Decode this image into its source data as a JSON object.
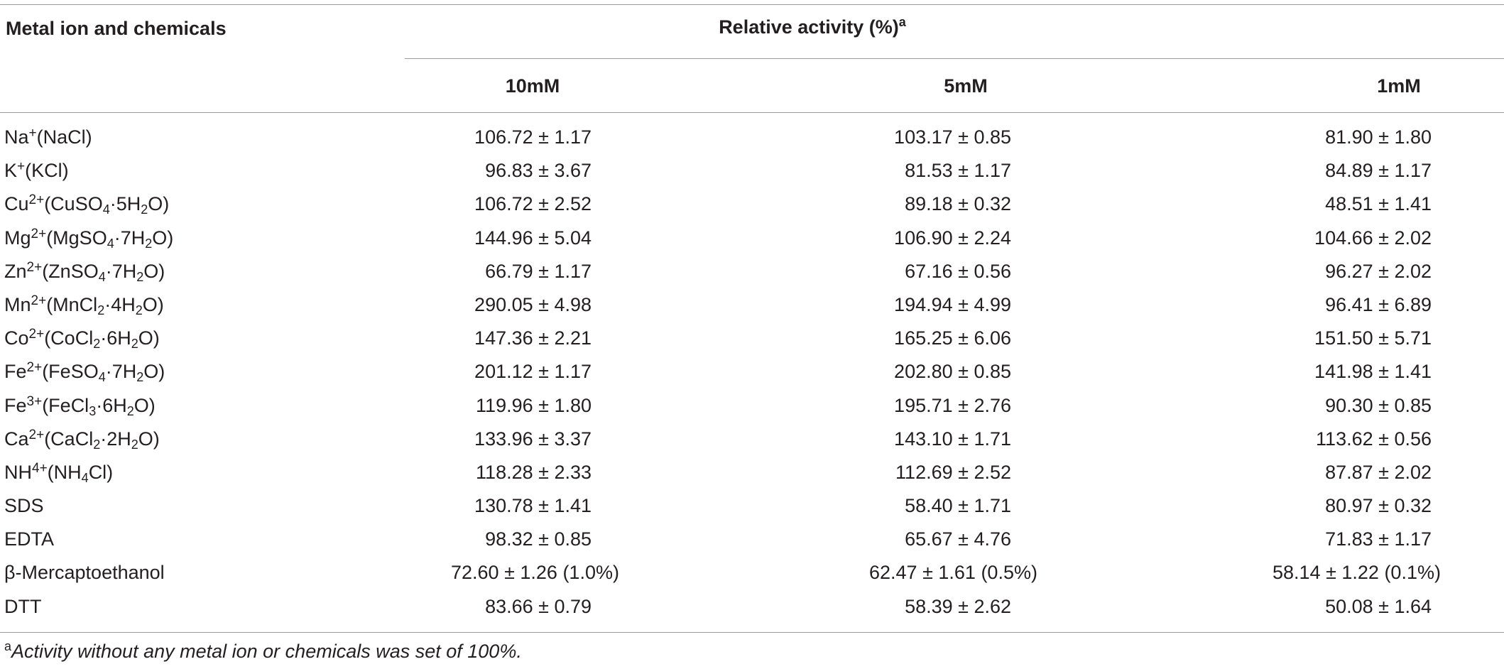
{
  "header": {
    "col_name": "Metal ion and chemicals",
    "col_group": "Relative activity (%)",
    "col_group_sup": "a",
    "col_10": "10mM",
    "col_5": "5mM",
    "col_1": "1mM"
  },
  "rows": [
    {
      "ion": "Na",
      "charge": "+",
      "pre": "(NaCl)",
      "subparts": [],
      "v10": "106.72 ± 1.17",
      "v5": "103.17 ± 0.85",
      "v1": "81.90 ± 1.80"
    },
    {
      "ion": "K",
      "charge": "+",
      "pre": "(KCl)",
      "subparts": [],
      "v10": "96.83 ± 3.67",
      "v5": "81.53 ± 1.17",
      "v1": "84.89 ± 1.17"
    },
    {
      "ion": "Cu",
      "charge": "2+",
      "formula": [
        "(CuSO",
        "4",
        "·5H",
        "2",
        "O)"
      ],
      "v10": "106.72 ± 2.52",
      "v5": "89.18 ± 0.32",
      "v1": "48.51 ± 1.41"
    },
    {
      "ion": "Mg",
      "charge": "2+",
      "formula": [
        "(MgSO",
        "4",
        "·7H",
        "2",
        "O)"
      ],
      "v10": "144.96 ± 5.04",
      "v5": "106.90 ± 2.24",
      "v1": "104.66 ± 2.02"
    },
    {
      "ion": "Zn",
      "charge": "2+",
      "formula": [
        "(ZnSO",
        "4",
        "·7H",
        "2",
        "O)"
      ],
      "v10": "66.79 ± 1.17",
      "v5": "67.16 ± 0.56",
      "v1": "96.27 ± 2.02"
    },
    {
      "ion": "Mn",
      "charge": "2+",
      "formula": [
        "(MnCl",
        "2",
        "·4H",
        "2",
        "O)"
      ],
      "v10": "290.05 ± 4.98",
      "v5": "194.94 ± 4.99",
      "v1": "96.41 ± 6.89"
    },
    {
      "ion": "Co",
      "charge": "2+",
      "formula": [
        "(CoCl",
        "2",
        "·6H",
        "2",
        "O)"
      ],
      "v10": "147.36 ± 2.21",
      "v5": "165.25 ± 6.06",
      "v1": "151.50 ± 5.71"
    },
    {
      "ion": "Fe",
      "charge": "2+",
      "formula": [
        "(FeSO",
        "4",
        "·7H",
        "2",
        "O)"
      ],
      "v10": "201.12 ± 1.17",
      "v5": "202.80 ± 0.85",
      "v1": "141.98 ± 1.41"
    },
    {
      "ion": "Fe",
      "charge": "3+",
      "formula": [
        "(FeCl",
        "3",
        "·6H",
        "2",
        "O)"
      ],
      "v10": "119.96 ± 1.80",
      "v5": "195.71 ± 2.76",
      "v1": "90.30 ± 0.85"
    },
    {
      "ion": "Ca",
      "charge": "2+",
      "formula": [
        "(CaCl",
        "2",
        "·2H",
        "2",
        "O)"
      ],
      "v10": "133.96 ± 3.37",
      "v5": "143.10 ± 1.71",
      "v1": "113.62 ± 0.56"
    },
    {
      "ion": "NH",
      "charge": "4+",
      "formula": [
        "(NH",
        "4",
        "Cl)"
      ],
      "v10": "118.28 ± 2.33",
      "v5": "112.69 ± 2.52",
      "v1": "87.87 ± 2.02"
    },
    {
      "ion": "SDS",
      "v10": "130.78 ± 1.41",
      "v5": "58.40 ± 1.71",
      "v1": "80.97 ± 0.32"
    },
    {
      "ion": "EDTA",
      "v10": "98.32 ± 0.85",
      "v5": "65.67 ± 4.76",
      "v1": "71.83 ± 1.17"
    },
    {
      "ion": "β-Mercaptoethanol",
      "v10": "72.60 ± 1.26 (1.0%)",
      "v5": "62.47 ± 1.61 (0.5%)",
      "v1": "58.14 ± 1.22 (0.1%)"
    },
    {
      "ion": "DTT",
      "v10": "83.66 ± 0.79",
      "v5": "58.39 ± 2.62",
      "v1": "50.08 ± 1.64"
    }
  ],
  "footnote": {
    "marker": "a",
    "text": "Activity without any metal ion or chemicals was set of 100%."
  }
}
